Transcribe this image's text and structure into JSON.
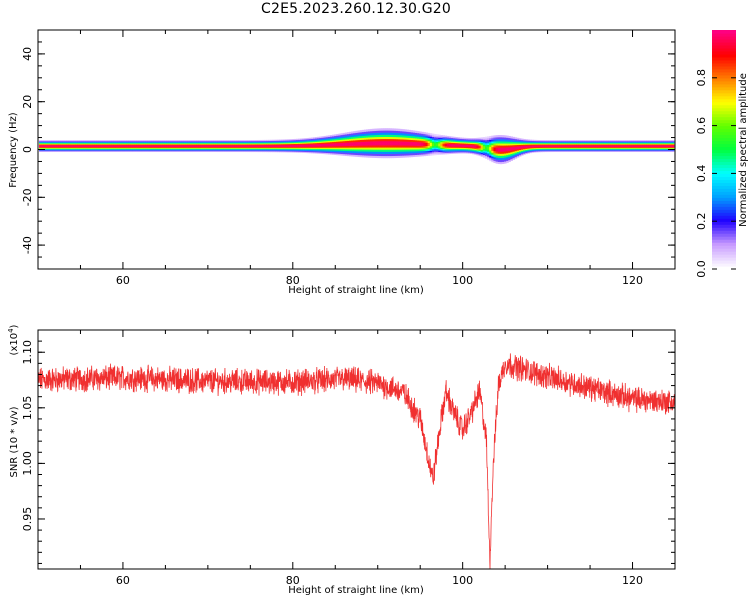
{
  "title": "C2E5.2023.260.12.30.G20",
  "chart_data": [
    {
      "type": "heatmap",
      "xlabel": "Height of straight line (km)",
      "ylabel": "Frequency (Hz)",
      "xlim": [
        50,
        125
      ],
      "ylim": [
        -50,
        50
      ],
      "xticks": [
        60,
        80,
        100,
        120
      ],
      "yticks": [
        -40,
        -20,
        0,
        20,
        40
      ],
      "grid": false,
      "colorbar": {
        "label": "Normalized spectral amplitude",
        "range": [
          0.0,
          1.0
        ],
        "ticks": [
          "0.0",
          "0.2",
          "0.4",
          "0.6",
          "0.8"
        ],
        "colormap": [
          "#ffffff",
          "#c89bff",
          "#2000ff",
          "#00a0ff",
          "#00ffff",
          "#00ff40",
          "#60ff00",
          "#ffff00",
          "#ff8000",
          "#ff0000",
          "#ff0080"
        ]
      },
      "ridge": {
        "center_frequency_hz": 1.5,
        "base_halfwidth_hz": 1.8,
        "broadening": [
          {
            "x": 91,
            "width_km": 5,
            "extra_halfwidth_hz": 2.8,
            "freq_shift_hz": 1.2
          },
          {
            "x": 104.5,
            "width_km": 1.6,
            "extra_halfwidth_hz": 2.6,
            "freq_shift_hz": -1.5
          }
        ],
        "dropouts": [
          {
            "x": 96.8,
            "width_km": 0.6
          },
          {
            "x": 102.8,
            "width_km": 0.5
          }
        ]
      }
    },
    {
      "type": "line",
      "xlabel": "Height of straight line (km)",
      "ylabel": "SNR (10 * v/v)",
      "multiplier": "(x10",
      "multiplier_exp": "4",
      "multiplier_close": ")",
      "xlim": [
        50,
        125
      ],
      "ylim": [
        0.905,
        1.12
      ],
      "xticks": [
        60,
        80,
        100,
        120
      ],
      "yticks": [
        "0.95",
        "1.00",
        "1.05",
        "1.10"
      ],
      "grid": false,
      "series": [
        {
          "color": "#f03030",
          "trend": [
            [
              50,
              1.075
            ],
            [
              60,
              1.077
            ],
            [
              70,
              1.074
            ],
            [
              80,
              1.073
            ],
            [
              86,
              1.076
            ],
            [
              90,
              1.072
            ],
            [
              93,
              1.064
            ],
            [
              95,
              1.04
            ],
            [
              96.5,
              0.985
            ],
            [
              97.2,
              1.025
            ],
            [
              98,
              1.065
            ],
            [
              99,
              1.045
            ],
            [
              100,
              1.03
            ],
            [
              101,
              1.045
            ],
            [
              102,
              1.065
            ],
            [
              102.8,
              1.02
            ],
            [
              103.2,
              0.912
            ],
            [
              103.6,
              1.0
            ],
            [
              104.2,
              1.07
            ],
            [
              105,
              1.09
            ],
            [
              107,
              1.085
            ],
            [
              110,
              1.078
            ],
            [
              115,
              1.068
            ],
            [
              120,
              1.058
            ],
            [
              125,
              1.055
            ]
          ],
          "noise_amplitude": 0.009
        }
      ]
    }
  ]
}
